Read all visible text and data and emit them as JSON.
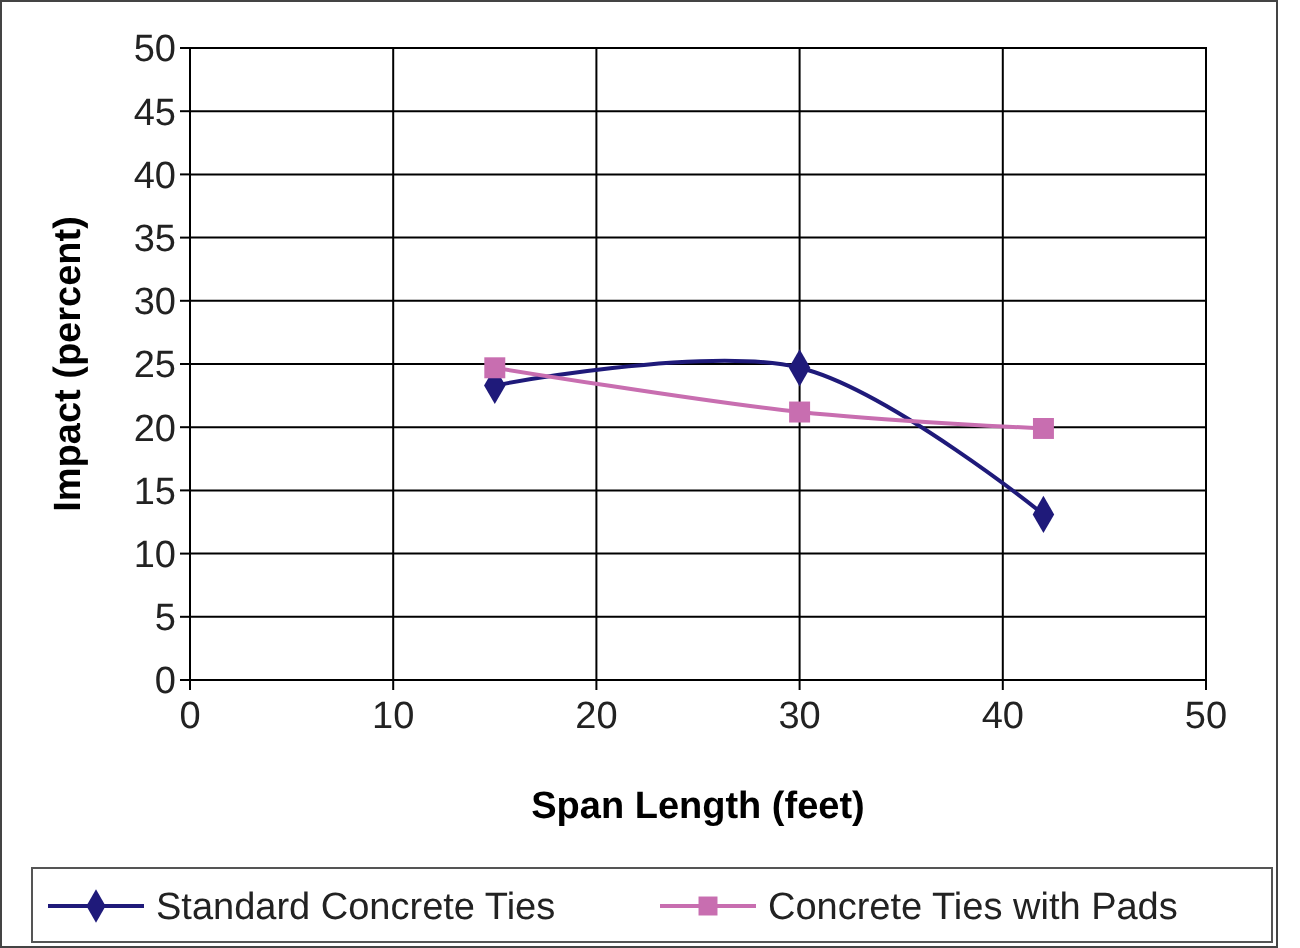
{
  "chart_data": {
    "type": "line",
    "xlabel": "Span Length (feet)",
    "ylabel": "Impact (percent)",
    "xlim": [
      0,
      50
    ],
    "xticks": [
      0,
      10,
      20,
      30,
      40,
      50
    ],
    "ylim": [
      0,
      50
    ],
    "yticks": [
      0,
      5,
      10,
      15,
      20,
      25,
      30,
      35,
      40,
      45,
      50
    ],
    "grid": true,
    "legend": "bottom",
    "line_style": "solid",
    "series": [
      {
        "name": "Standard Concrete Ties",
        "color": "#1f1a7a",
        "marker": "diamond",
        "x": [
          15,
          30,
          42
        ],
        "values": [
          23.3,
          24.7,
          13.1
        ]
      },
      {
        "name": "Concrete Ties with Pads",
        "color": "#c86eb0",
        "marker": "square",
        "x": [
          15,
          30,
          42
        ],
        "values": [
          24.7,
          21.2,
          19.9
        ]
      }
    ]
  }
}
